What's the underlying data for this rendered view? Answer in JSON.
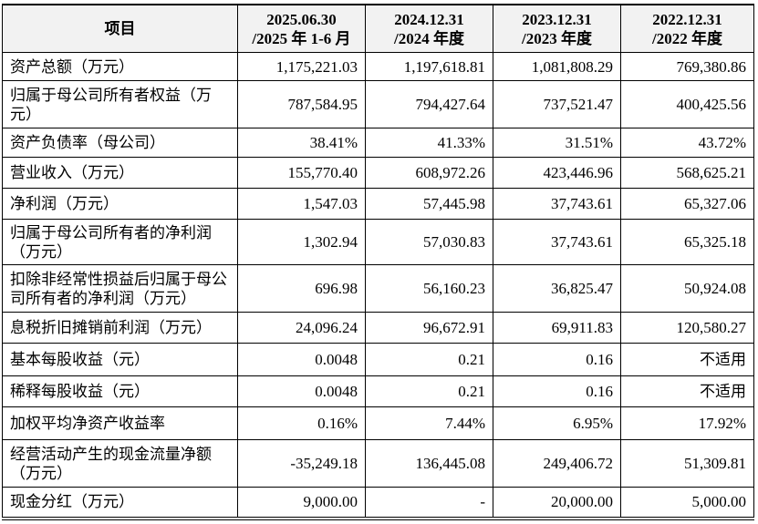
{
  "table": {
    "header": [
      [
        "项目"
      ],
      [
        "2025.06.30",
        "/2025 年 1-6 月"
      ],
      [
        "2024.12.31",
        "/2024 年度"
      ],
      [
        "2023.12.31",
        "/2023 年度"
      ],
      [
        "2022.12.31",
        "/2022 年度"
      ]
    ],
    "rows": [
      [
        "资产总额（万元）",
        "1,175,221.03",
        "1,197,618.81",
        "1,081,808.29",
        "769,380.86"
      ],
      [
        "归属于母公司所有者权益（万元）",
        "787,584.95",
        "794,427.64",
        "737,521.47",
        "400,425.56"
      ],
      [
        "资产负债率（母公司）",
        "38.41%",
        "41.33%",
        "31.51%",
        "43.72%"
      ],
      [
        "营业收入（万元）",
        "155,770.40",
        "608,972.26",
        "423,446.96",
        "568,625.21"
      ],
      [
        "净利润（万元）",
        "1,547.03",
        "57,445.98",
        "37,743.61",
        "65,327.06"
      ],
      [
        "归属于母公司所有者的净利润（万元）",
        "1,302.94",
        "57,030.83",
        "37,743.61",
        "65,325.18"
      ],
      [
        "扣除非经常性损益后归属于母公司所有者的净利润（万元）",
        "696.98",
        "56,160.23",
        "36,825.47",
        "50,924.08"
      ],
      [
        "息税折旧摊销前利润（万元）",
        "24,096.24",
        "96,672.91",
        "69,911.83",
        "120,580.27"
      ],
      [
        "基本每股收益（元）",
        "0.0048",
        "0.21",
        "0.16",
        "不适用"
      ],
      [
        "稀释每股收益（元）",
        "0.0048",
        "0.21",
        "0.16",
        "不适用"
      ],
      [
        "加权平均净资产收益率",
        "0.16%",
        "7.44%",
        "6.95%",
        "17.92%"
      ],
      [
        "经营活动产生的现金流量净额（万元）",
        "-35,249.18",
        "136,445.08",
        "249,406.72",
        "51,309.81"
      ],
      [
        "现金分红（万元）",
        "9,000.00",
        "-",
        "20,000.00",
        "5,000.00"
      ]
    ]
  }
}
